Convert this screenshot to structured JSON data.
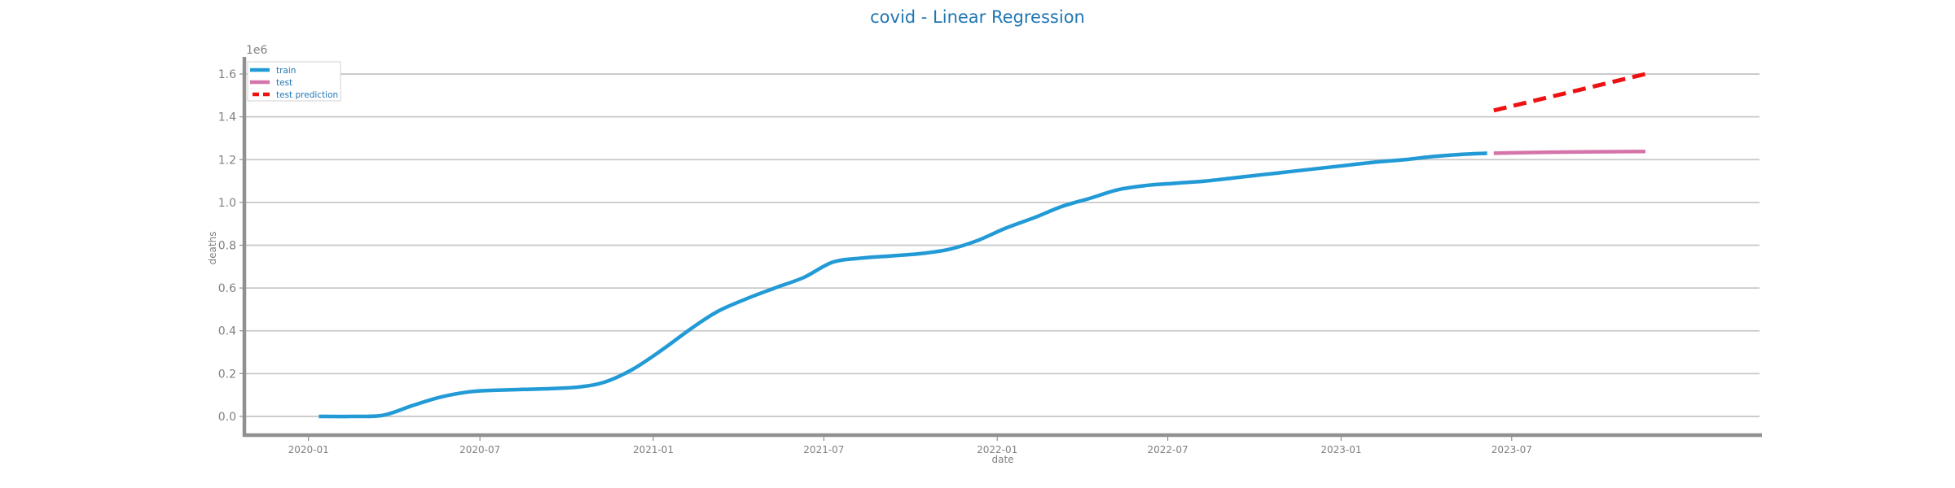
{
  "chart_data": {
    "type": "line",
    "title": "covid - Linear Regression",
    "xlabel": "date",
    "ylabel": "deaths",
    "y_offset_label": "1e6",
    "xlim": [
      "2019-10-25",
      "2024-03-20"
    ],
    "ylim": [
      -0.08,
      1.68
    ],
    "x_ticks": [
      "2020-01-01",
      "2020-07-01",
      "2021-01-01",
      "2021-07-01",
      "2022-01-01",
      "2022-07-01",
      "2023-01-01",
      "2023-07-01"
    ],
    "x_tick_labels": [
      "2020-01",
      "2020-07",
      "2021-01",
      "2021-07",
      "2022-01",
      "2022-07",
      "2023-01",
      "2023-07"
    ],
    "y_ticks": [
      0.0,
      0.2,
      0.4,
      0.6,
      0.8,
      1.0,
      1.2,
      1.4,
      1.6
    ],
    "y_tick_labels": [
      "0.0",
      "0.2",
      "0.4",
      "0.6",
      "0.8",
      "1.0",
      "1.2",
      "1.4",
      "1.6"
    ],
    "grid": "horizontal",
    "legend_position": "top-left",
    "series": [
      {
        "name": "train",
        "color": "#229ad6",
        "style": "solid",
        "x": [
          "2020-01-12",
          "2020-02-15",
          "2020-03-20",
          "2020-04-20",
          "2020-05-20",
          "2020-06-20",
          "2020-07-15",
          "2020-08-15",
          "2020-09-15",
          "2020-10-15",
          "2020-11-10",
          "2020-12-10",
          "2021-01-10",
          "2021-02-10",
          "2021-03-10",
          "2021-04-10",
          "2021-05-10",
          "2021-06-10",
          "2021-07-10",
          "2021-08-10",
          "2021-09-10",
          "2021-10-10",
          "2021-11-10",
          "2021-12-10",
          "2022-01-10",
          "2022-02-10",
          "2022-03-10",
          "2022-04-10",
          "2022-05-10",
          "2022-06-10",
          "2022-07-10",
          "2022-08-10",
          "2022-09-10",
          "2022-10-10",
          "2022-11-10",
          "2022-12-10",
          "2023-01-10",
          "2023-02-10",
          "2023-03-10",
          "2023-04-10",
          "2023-05-10",
          "2023-06-05"
        ],
        "values": [
          0.0,
          0.0,
          0.005,
          0.05,
          0.09,
          0.115,
          0.122,
          0.126,
          0.13,
          0.138,
          0.16,
          0.22,
          0.31,
          0.41,
          0.49,
          0.55,
          0.6,
          0.65,
          0.72,
          0.74,
          0.75,
          0.76,
          0.78,
          0.82,
          0.88,
          0.93,
          0.98,
          1.02,
          1.06,
          1.08,
          1.09,
          1.1,
          1.115,
          1.13,
          1.145,
          1.16,
          1.175,
          1.19,
          1.2,
          1.215,
          1.225,
          1.23
        ]
      },
      {
        "name": "test",
        "color": "#d474aa",
        "style": "solid",
        "x": [
          "2023-06-12",
          "2023-07-15",
          "2023-08-15",
          "2023-09-15",
          "2023-10-15",
          "2023-11-20"
        ],
        "values": [
          1.23,
          1.233,
          1.235,
          1.236,
          1.237,
          1.238
        ]
      },
      {
        "name": "test prediction",
        "color": "#ee1111",
        "style": "dashed",
        "x": [
          "2023-06-12",
          "2023-11-20"
        ],
        "values": [
          1.43,
          1.6
        ]
      }
    ]
  }
}
